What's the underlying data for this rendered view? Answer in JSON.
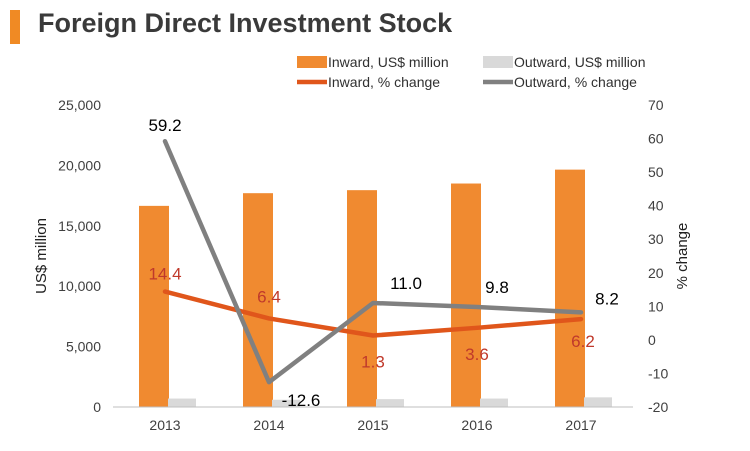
{
  "chart_data": {
    "type": "bar",
    "title": "Foreign Direct Investment Stock",
    "categories": [
      "2013",
      "2014",
      "2015",
      "2016",
      "2017"
    ],
    "series": [
      {
        "name": "Inward, US$ million",
        "kind": "bar",
        "axis": "left",
        "color": "#f08a30",
        "values": [
          16650,
          17700,
          17950,
          18500,
          19650
        ]
      },
      {
        "name": "Outward, US$ million",
        "kind": "bar",
        "axis": "left",
        "color": "#d9d9d9",
        "values": [
          700,
          600,
          650,
          700,
          800
        ]
      },
      {
        "name": "Inward, % change",
        "kind": "line",
        "axis": "right",
        "color": "#e0561b",
        "label_color": "#c0392b",
        "values": [
          14.4,
          6.4,
          1.3,
          3.6,
          6.2
        ],
        "labels": [
          "14.4",
          "6.4",
          "1.3",
          "3.6",
          "6.2"
        ]
      },
      {
        "name": "Outward, % change",
        "kind": "line",
        "axis": "right",
        "color": "#808080",
        "label_color": "#000000",
        "values": [
          59.2,
          -12.6,
          11.0,
          9.8,
          8.2
        ],
        "labels": [
          "59.2",
          "-12.6",
          "11.0",
          "9.8",
          "8.2"
        ]
      }
    ],
    "ylabel": "US$ million",
    "y2label": "% change",
    "ylim": [
      0,
      25000
    ],
    "y2lim": [
      -20,
      70
    ],
    "yticks": [
      0,
      5000,
      10000,
      15000,
      20000,
      25000
    ],
    "ytick_labels": [
      "0",
      "5,000",
      "10,000",
      "15,000",
      "20,000",
      "25,000"
    ],
    "y2ticks": [
      -20,
      -10,
      0,
      10,
      20,
      30,
      40,
      50,
      60,
      70
    ],
    "y2tick_labels": [
      "-20",
      "-10",
      "0",
      "10",
      "20",
      "30",
      "40",
      "50",
      "60",
      "70"
    ],
    "legend_position": "top-right",
    "grid": false
  }
}
